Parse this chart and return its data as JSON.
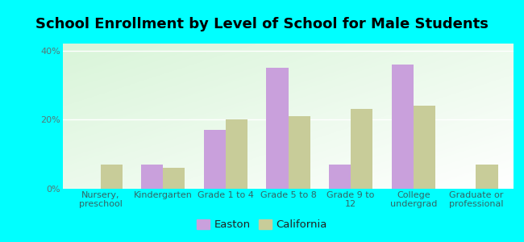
{
  "title": "School Enrollment by Level of School for Male Students",
  "categories": [
    "Nursery,\npreschool",
    "Kindergarten",
    "Grade 1 to 4",
    "Grade 5 to 8",
    "Grade 9 to\n12",
    "College\nundergrad",
    "Graduate or\nprofessional"
  ],
  "easton_values": [
    0,
    7,
    17,
    35,
    7,
    36,
    0
  ],
  "california_values": [
    7,
    6,
    20,
    21,
    23,
    24,
    7
  ],
  "easton_color": "#c9a0dc",
  "california_color": "#c8cc99",
  "background_color": "#00ffff",
  "ylim": [
    0,
    42
  ],
  "yticks": [
    0,
    20,
    40
  ],
  "ytick_labels": [
    "0%",
    "20%",
    "40%"
  ],
  "legend_labels": [
    "Easton",
    "California"
  ],
  "bar_width": 0.35,
  "title_fontsize": 13,
  "tick_fontsize": 8,
  "legend_fontsize": 9.5
}
